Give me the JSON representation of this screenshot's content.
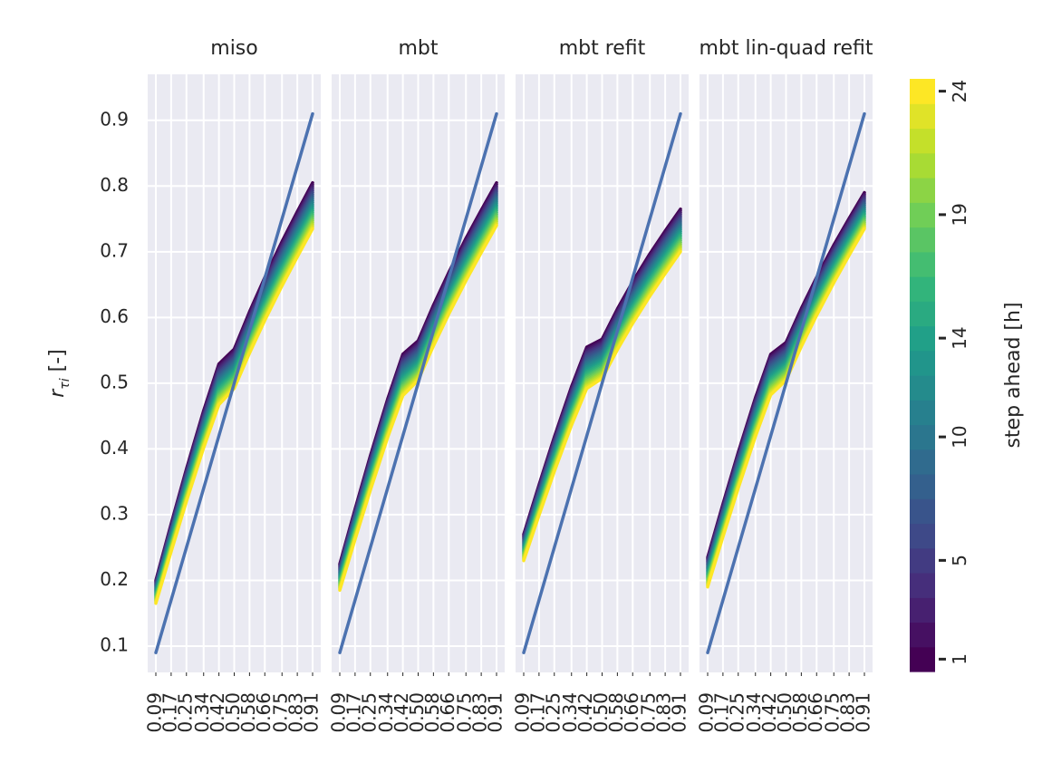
{
  "chart_data": {
    "type": "line",
    "panels": [
      {
        "title": "miso",
        "nominal_line": [
          [
            0.09,
            0.09
          ],
          [
            0.91,
            0.91
          ]
        ],
        "curve_start_range": [
          0.165,
          0.2
        ],
        "curve_end_range": [
          0.735,
          0.805
        ]
      },
      {
        "title": "mbt",
        "nominal_line": [
          [
            0.09,
            0.09
          ],
          [
            0.91,
            0.91
          ]
        ],
        "curve_start_range": [
          0.185,
          0.225
        ],
        "curve_end_range": [
          0.74,
          0.805
        ]
      },
      {
        "title": "mbt refit",
        "nominal_line": [
          [
            0.09,
            0.09
          ],
          [
            0.91,
            0.91
          ]
        ],
        "curve_start_range": [
          0.23,
          0.27
        ],
        "curve_end_range": [
          0.7,
          0.765
        ]
      },
      {
        "title": "mbt lin-quad refit",
        "nominal_line": [
          [
            0.09,
            0.09
          ],
          [
            0.91,
            0.91
          ]
        ],
        "curve_start_range": [
          0.19,
          0.235
        ],
        "curve_end_range": [
          0.735,
          0.79
        ]
      }
    ],
    "x_ticks": [
      "0.09",
      "0.17",
      "0.25",
      "0.34",
      "0.42",
      "0.50",
      "0.58",
      "0.66",
      "0.75",
      "0.83",
      "0.91"
    ],
    "y_ticks": [
      "0.1",
      "0.2",
      "0.3",
      "0.4",
      "0.5",
      "0.6",
      "0.7",
      "0.8",
      "0.9"
    ],
    "ylabel_main": "r",
    "ylabel_sub": "τi",
    "ylabel_unit": " [-]",
    "ylim": [
      0.06,
      0.97
    ],
    "colorbar": {
      "label": "step ahead [h]",
      "ticks": [
        "1",
        "5",
        "10",
        "14",
        "19",
        "24"
      ],
      "range": [
        1,
        24
      ],
      "colormap": "viridis"
    },
    "steps": 24,
    "grid": true,
    "nominal_color": "#4c72b0",
    "background_color": "#eaeaf2"
  }
}
